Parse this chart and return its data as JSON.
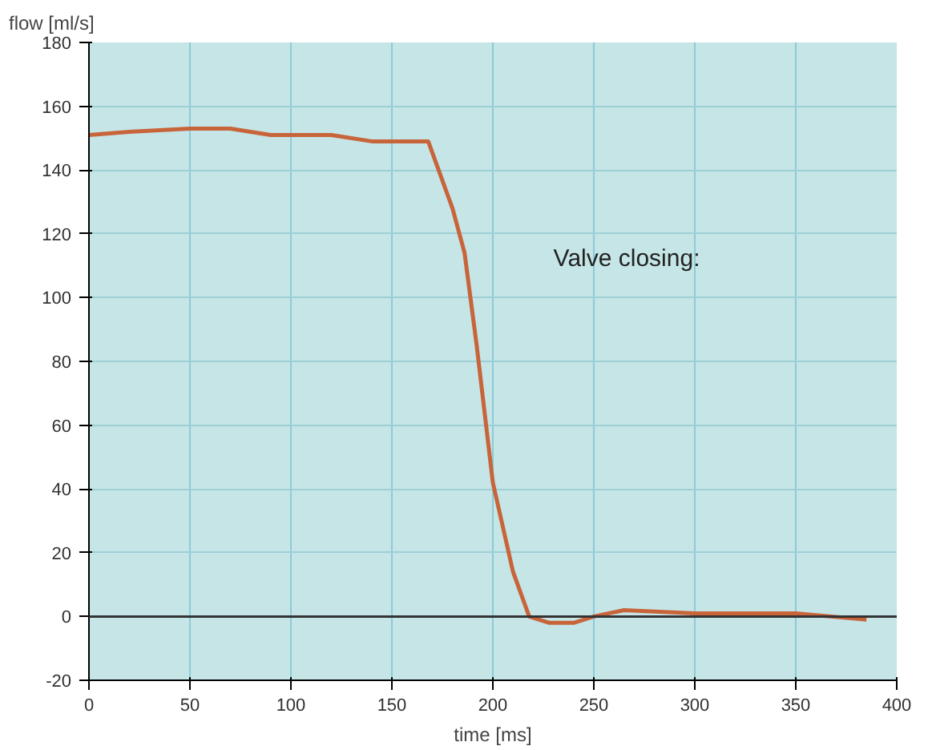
{
  "chart_data": {
    "type": "line",
    "xlabel": "time [ms]",
    "ylabel": "flow [ml/s]",
    "annotations": [
      "Valve closing:"
    ],
    "x": [
      0,
      20,
      50,
      70,
      90,
      120,
      140,
      168,
      180,
      186,
      192,
      200,
      210,
      218,
      228,
      240,
      250,
      265,
      300,
      350,
      385
    ],
    "series": [
      {
        "color": "#c8643a",
        "values": [
          151,
          152,
          153,
          153,
          151,
          151,
          149,
          149,
          128,
          114,
          85,
          42,
          14,
          0,
          -2,
          -2,
          0,
          2,
          1,
          1,
          -1
        ]
      }
    ],
    "xlim": [
      0,
      400
    ],
    "ylim": [
      -20,
      180
    ],
    "xticks": [
      0,
      50,
      100,
      150,
      200,
      250,
      300,
      350,
      400
    ],
    "yticks": [
      -20,
      0,
      20,
      40,
      60,
      80,
      100,
      120,
      140,
      160,
      180
    ],
    "grid": true,
    "marker": "none",
    "line_style": "solid"
  }
}
